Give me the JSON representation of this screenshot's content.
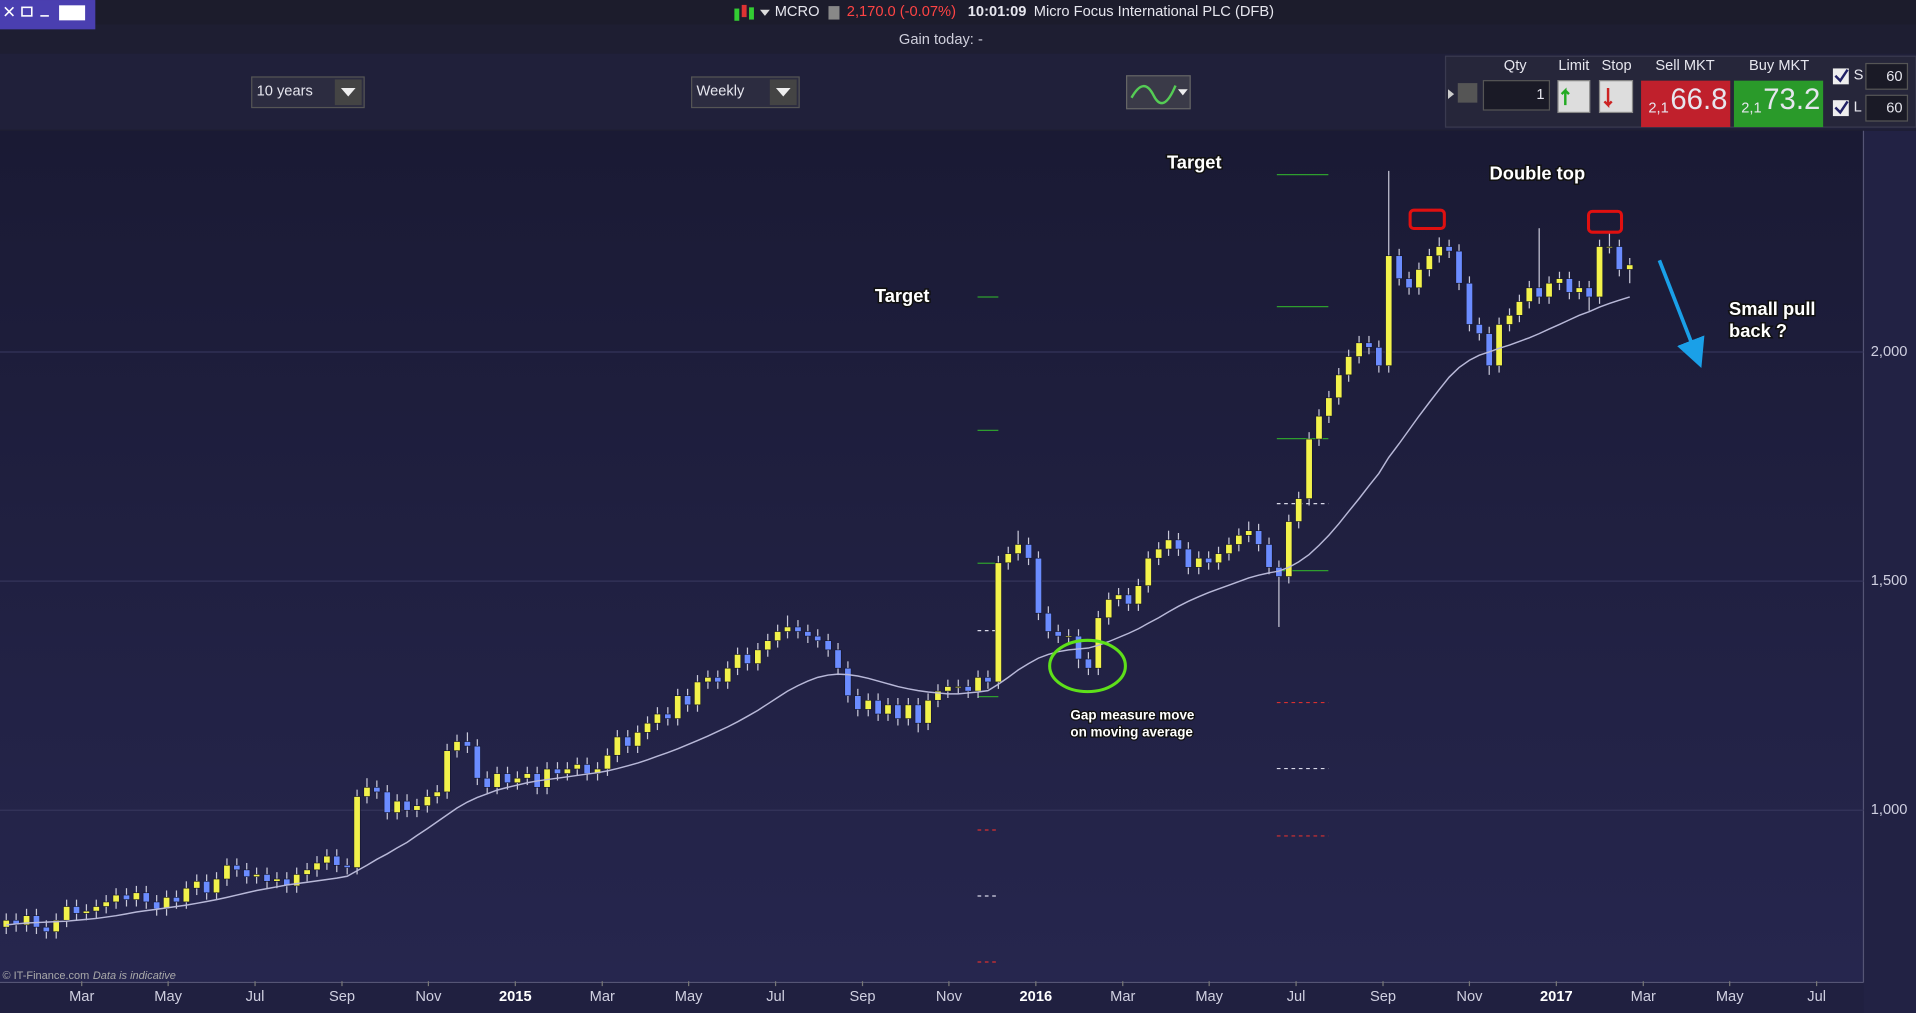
{
  "topbar": {
    "ticker": "MCRO",
    "price_change": "2,170.0 (-0.07%)",
    "time": "10:01:09",
    "instrument": "Micro Focus International PLC (DFB)",
    "gain_today": "Gain today: -"
  },
  "controls": {
    "period": "10 years",
    "interval": "Weekly"
  },
  "trade_panel": {
    "qty_label": "Qty",
    "qty": "1",
    "limit_label": "Limit",
    "stop_label": "Stop",
    "sell_label": "Sell MKT",
    "sell_prefix": "2,1",
    "sell_price": "66.8",
    "buy_label": "Buy MKT",
    "buy_prefix": "2,1",
    "buy_price": "73.2",
    "s_label": "S",
    "s_value": "60",
    "l_label": "L",
    "l_value": "60"
  },
  "footer": {
    "copyright": "© IT-Finance.com",
    "note": "Data is indicative"
  },
  "chart_data": {
    "type": "candlestick",
    "up_color": "#f2f24b",
    "down_color": "#6b8cff",
    "grid": true,
    "x": [
      2014.022,
      2014.041,
      2014.061,
      2014.08,
      2014.099,
      2014.118,
      2014.138,
      2014.157,
      2014.176,
      2014.195,
      2014.214,
      2014.233,
      2014.253,
      2014.272,
      2014.291,
      2014.311,
      2014.33,
      2014.349,
      2014.368,
      2014.388,
      2014.407,
      2014.426,
      2014.446,
      2014.465,
      2014.484,
      2014.503,
      2014.523,
      2014.542,
      2014.561,
      2014.58,
      2014.6,
      2014.619,
      2014.638,
      2014.657,
      2014.677,
      2014.696,
      2014.715,
      2014.734,
      2014.754,
      2014.773,
      2014.792,
      2014.811,
      2014.831,
      2014.85,
      2014.869,
      2014.888,
      2014.908,
      2014.927,
      2014.946,
      2014.965,
      2014.985,
      2015.004,
      2015.023,
      2015.042,
      2015.061,
      2015.081,
      2015.1,
      2015.119,
      2015.138,
      2015.158,
      2015.177,
      2015.196,
      2015.216,
      2015.235,
      2015.254,
      2015.273,
      2015.293,
      2015.312,
      2015.331,
      2015.35,
      2015.37,
      2015.389,
      2015.408,
      2015.427,
      2015.446,
      2015.466,
      2015.485,
      2015.504,
      2015.523,
      2015.543,
      2015.562,
      2015.581,
      2015.601,
      2015.62,
      2015.639,
      2015.658,
      2015.678,
      2015.697,
      2015.716,
      2015.735,
      2015.755,
      2015.774,
      2015.793,
      2015.812,
      2015.831,
      2015.851,
      2015.87,
      2015.889,
      2015.908,
      2015.928,
      2015.947,
      2015.966,
      2015.986,
      2016.005,
      2016.024,
      2016.043,
      2016.063,
      2016.082,
      2016.101,
      2016.12,
      2016.14,
      2016.159,
      2016.178,
      2016.197,
      2016.216,
      2016.236,
      2016.255,
      2016.274,
      2016.293,
      2016.313,
      2016.332,
      2016.351,
      2016.371,
      2016.39,
      2016.409,
      2016.428,
      2016.448,
      2016.467,
      2016.486,
      2016.505,
      2016.525,
      2016.544,
      2016.563,
      2016.582,
      2016.601,
      2016.621,
      2016.64,
      2016.659,
      2016.678,
      2016.698,
      2016.717,
      2016.736,
      2016.756,
      2016.775,
      2016.794,
      2016.813,
      2016.833,
      2016.852,
      2016.871,
      2016.89,
      2016.91,
      2016.929,
      2016.948,
      2016.967,
      2016.986,
      2017.006,
      2017.025,
      2017.044,
      2017.063,
      2017.083,
      2017.102,
      2017.121,
      2017.141
    ],
    "open": [
      745,
      760,
      750,
      770,
      745,
      735,
      760,
      790,
      775,
      780,
      790,
      800,
      815,
      805,
      820,
      800,
      785,
      810,
      800,
      830,
      845,
      820,
      850,
      880,
      870,
      855,
      860,
      845,
      850,
      835,
      860,
      870,
      885,
      900,
      880,
      875,
      1030,
      1050,
      1040,
      995,
      1020,
      1000,
      1010,
      1030,
      1040,
      1130,
      1150,
      1140,
      1070,
      1050,
      1080,
      1060,
      1070,
      1080,
      1050,
      1090,
      1080,
      1090,
      1100,
      1080,
      1090,
      1120,
      1160,
      1140,
      1170,
      1190,
      1210,
      1200,
      1250,
      1230,
      1280,
      1290,
      1280,
      1310,
      1340,
      1320,
      1350,
      1370,
      1390,
      1400,
      1390,
      1380,
      1370,
      1350,
      1310,
      1250,
      1220,
      1240,
      1210,
      1230,
      1200,
      1230,
      1190,
      1240,
      1260,
      1270,
      1270,
      1260,
      1290,
      1280,
      1540,
      1560,
      1580,
      1550,
      1430,
      1390,
      1380,
      1380,
      1330,
      1310,
      1420,
      1460,
      1470,
      1450,
      1490,
      1550,
      1570,
      1590,
      1570,
      1530,
      1550,
      1540,
      1560,
      1580,
      1600,
      1610,
      1580,
      1530,
      1510,
      1630,
      1680,
      1810,
      1860,
      1900,
      1950,
      1990,
      2020,
      2010,
      1970,
      2210,
      2160,
      2140,
      2180,
      2210,
      2230,
      2220,
      2150,
      2060,
      2040,
      1970,
      2060,
      2080,
      2110,
      2140,
      2120,
      2150,
      2160,
      2130,
      2140,
      2120,
      2230,
      2230,
      2180
    ],
    "high": [
      775,
      775,
      785,
      785,
      760,
      775,
      805,
      805,
      795,
      805,
      815,
      830,
      830,
      835,
      835,
      815,
      825,
      825,
      845,
      860,
      860,
      865,
      895,
      895,
      885,
      875,
      875,
      865,
      865,
      875,
      885,
      900,
      915,
      915,
      895,
      1045,
      1070,
      1065,
      1055,
      1035,
      1035,
      1025,
      1045,
      1055,
      1145,
      1165,
      1170,
      1155,
      1085,
      1095,
      1095,
      1085,
      1095,
      1095,
      1105,
      1105,
      1105,
      1115,
      1115,
      1105,
      1135,
      1175,
      1175,
      1185,
      1205,
      1225,
      1225,
      1265,
      1265,
      1295,
      1305,
      1305,
      1325,
      1355,
      1355,
      1365,
      1385,
      1405,
      1425,
      1415,
      1405,
      1395,
      1385,
      1365,
      1325,
      1265,
      1255,
      1255,
      1245,
      1245,
      1245,
      1245,
      1255,
      1275,
      1285,
      1285,
      1285,
      1305,
      1305,
      1555,
      1575,
      1610,
      1595,
      1565,
      1445,
      1405,
      1395,
      1395,
      1345,
      1435,
      1475,
      1485,
      1485,
      1505,
      1565,
      1585,
      1610,
      1605,
      1585,
      1565,
      1565,
      1575,
      1595,
      1615,
      1630,
      1625,
      1595,
      1545,
      1645,
      1695,
      1825,
      1875,
      1915,
      1965,
      2005,
      2035,
      2035,
      2025,
      2395,
      2225,
      2175,
      2195,
      2225,
      2250,
      2245,
      2235,
      2165,
      2075,
      2055,
      2075,
      2095,
      2125,
      2155,
      2270,
      2165,
      2175,
      2175,
      2155,
      2155,
      2245,
      2260,
      2245,
      2205
    ],
    "low": [
      730,
      735,
      735,
      730,
      720,
      720,
      745,
      760,
      760,
      765,
      775,
      785,
      790,
      790,
      785,
      770,
      770,
      785,
      785,
      815,
      805,
      805,
      835,
      855,
      840,
      840,
      830,
      830,
      820,
      820,
      845,
      855,
      870,
      865,
      860,
      860,
      1015,
      1025,
      980,
      980,
      985,
      985,
      995,
      1015,
      1025,
      1115,
      1125,
      1055,
      1035,
      1035,
      1045,
      1045,
      1055,
      1035,
      1035,
      1065,
      1065,
      1075,
      1065,
      1065,
      1075,
      1105,
      1125,
      1125,
      1155,
      1175,
      1185,
      1185,
      1215,
      1215,
      1265,
      1265,
      1265,
      1295,
      1305,
      1305,
      1335,
      1355,
      1375,
      1375,
      1365,
      1355,
      1335,
      1295,
      1235,
      1205,
      1205,
      1195,
      1195,
      1185,
      1185,
      1170,
      1175,
      1225,
      1245,
      1255,
      1245,
      1245,
      1265,
      1265,
      1525,
      1545,
      1535,
      1415,
      1375,
      1365,
      1365,
      1310,
      1295,
      1295,
      1405,
      1445,
      1435,
      1435,
      1475,
      1535,
      1555,
      1555,
      1515,
      1515,
      1525,
      1525,
      1545,
      1565,
      1585,
      1565,
      1515,
      1400,
      1495,
      1615,
      1665,
      1795,
      1845,
      1885,
      1935,
      1975,
      1995,
      1955,
      1955,
      2145,
      2125,
      2125,
      2165,
      2195,
      2205,
      2135,
      2045,
      2025,
      1950,
      1955,
      2045,
      2065,
      2095,
      2105,
      2105,
      2135,
      2115,
      2115,
      2090,
      2105,
      2215,
      2165,
      2150
    ],
    "close": [
      760,
      750,
      770,
      745,
      735,
      760,
      790,
      775,
      780,
      790,
      800,
      815,
      805,
      820,
      800,
      785,
      810,
      800,
      830,
      845,
      820,
      850,
      880,
      870,
      855,
      860,
      845,
      850,
      835,
      860,
      870,
      885,
      900,
      880,
      875,
      1030,
      1050,
      1040,
      995,
      1020,
      1000,
      1010,
      1030,
      1040,
      1130,
      1150,
      1140,
      1070,
      1050,
      1080,
      1060,
      1070,
      1080,
      1050,
      1090,
      1080,
      1090,
      1100,
      1080,
      1090,
      1120,
      1160,
      1140,
      1170,
      1190,
      1210,
      1200,
      1250,
      1230,
      1280,
      1290,
      1280,
      1310,
      1340,
      1320,
      1350,
      1370,
      1390,
      1400,
      1390,
      1380,
      1370,
      1350,
      1310,
      1250,
      1220,
      1240,
      1210,
      1230,
      1200,
      1230,
      1190,
      1240,
      1260,
      1270,
      1270,
      1260,
      1290,
      1280,
      1540,
      1560,
      1580,
      1550,
      1430,
      1390,
      1380,
      1380,
      1330,
      1310,
      1420,
      1460,
      1470,
      1450,
      1490,
      1550,
      1570,
      1590,
      1570,
      1530,
      1550,
      1540,
      1560,
      1580,
      1600,
      1610,
      1580,
      1530,
      1510,
      1630,
      1680,
      1810,
      1860,
      1900,
      1950,
      1990,
      2020,
      2010,
      1970,
      2210,
      2160,
      2140,
      2180,
      2210,
      2230,
      2220,
      2150,
      2060,
      2040,
      1970,
      2060,
      2080,
      2110,
      2140,
      2120,
      2150,
      2160,
      2130,
      2140,
      2120,
      2230,
      2230,
      2180,
      2190
    ],
    "series": [
      {
        "color": "#b8b8d8",
        "values": [
          750,
          752,
          754,
          755,
          756,
          757,
          758,
          760,
          762,
          764,
          767,
          770,
          774,
          778,
          781,
          784,
          787,
          790,
          793,
          797,
          801,
          805,
          810,
          815,
          820,
          825,
          829,
          833,
          837,
          840,
          843,
          846,
          849,
          852,
          856,
          868,
          880,
          893,
          905,
          918,
          930,
          945,
          960,
          975,
          990,
          1005,
          1018,
          1028,
          1036,
          1044,
          1050,
          1055,
          1060,
          1064,
          1067,
          1070,
          1073,
          1076,
          1079,
          1082,
          1086,
          1091,
          1097,
          1103,
          1110,
          1118,
          1126,
          1134,
          1143,
          1152,
          1162,
          1172,
          1182,
          1193,
          1205,
          1218,
          1232,
          1246,
          1260,
          1272,
          1282,
          1290,
          1295,
          1297,
          1296,
          1293,
          1288,
          1282,
          1276,
          1270,
          1265,
          1261,
          1258,
          1256,
          1254,
          1254,
          1256,
          1258,
          1261,
          1275,
          1290,
          1306,
          1320,
          1332,
          1340,
          1346,
          1350,
          1352,
          1354,
          1360,
          1368,
          1377,
          1386,
          1396,
          1408,
          1420,
          1433,
          1445,
          1456,
          1466,
          1475,
          1483,
          1491,
          1499,
          1507,
          1513,
          1518,
          1522,
          1530,
          1542,
          1558,
          1578,
          1600,
          1625,
          1652,
          1680,
          1708,
          1735,
          1770,
          1800,
          1830,
          1860,
          1890,
          1918,
          1945,
          1966,
          1982,
          1993,
          2000,
          2008,
          2015,
          2023,
          2031,
          2040,
          2050,
          2060,
          2070,
          2080,
          2088,
          2098,
          2106,
          2113,
          2120
        ]
      }
    ],
    "levels": [
      {
        "x": [
          2015.888,
          2015.928
        ],
        "value": 2120,
        "color": "#2e9e2e",
        "dashed": false
      },
      {
        "x": [
          2015.888,
          2015.928
        ],
        "value": 1829,
        "color": "#2e9e2e",
        "dashed": false
      },
      {
        "x": [
          2015.888,
          2015.928
        ],
        "value": 1539,
        "color": "#2e9e2e",
        "dashed": false
      },
      {
        "x": [
          2015.888,
          2015.928
        ],
        "value": 1392,
        "color": "#d8d8e8",
        "dashed": true
      },
      {
        "x": [
          2015.888,
          2015.928
        ],
        "value": 1248,
        "color": "#2e9e2e",
        "dashed": false
      },
      {
        "x": [
          2015.888,
          2015.928
        ],
        "value": 957,
        "color": "#d83030",
        "dashed": true
      },
      {
        "x": [
          2015.888,
          2015.928
        ],
        "value": 813,
        "color": "#d8d8e8",
        "dashed": true
      },
      {
        "x": [
          2015.888,
          2015.928
        ],
        "value": 669,
        "color": "#d83030",
        "dashed": true
      },
      {
        "x": [
          2016.463,
          2016.562
        ],
        "value": 2387,
        "color": "#2e9e2e",
        "dashed": false
      },
      {
        "x": [
          2016.463,
          2016.562
        ],
        "value": 2099,
        "color": "#2e9e2e",
        "dashed": false
      },
      {
        "x": [
          2016.463,
          2016.562
        ],
        "value": 1811,
        "color": "#2e9e2e",
        "dashed": false
      },
      {
        "x": [
          2016.463,
          2016.562
        ],
        "value": 1669,
        "color": "#d8d8e8",
        "dashed": true
      },
      {
        "x": [
          2016.463,
          2016.562
        ],
        "value": 1523,
        "color": "#2e9e2e",
        "dashed": false
      },
      {
        "x": [
          2016.463,
          2016.562
        ],
        "value": 1235,
        "color": "#d83030",
        "dashed": true
      },
      {
        "x": [
          2016.463,
          2016.562
        ],
        "value": 1091,
        "color": "#d8d8e8",
        "dashed": true
      },
      {
        "x": [
          2016.463,
          2016.562
        ],
        "value": 944,
        "color": "#d83030",
        "dashed": true
      }
    ],
    "annotations": [
      "Target",
      "Target",
      "Double top",
      "Small pull",
      "back ?",
      "Gap measure move",
      "on moving average"
    ],
    "xlim": [
      2014.01,
      2017.59
    ],
    "xticks": [
      {
        "value": 2014.167,
        "label": "Mar"
      },
      {
        "value": 2014.333,
        "label": "May"
      },
      {
        "value": 2014.5,
        "label": "Jul"
      },
      {
        "value": 2014.667,
        "label": "Sep"
      },
      {
        "value": 2014.833,
        "label": "Nov"
      },
      2015,
      {
        "value": 2015.167,
        "label": "Mar"
      },
      {
        "value": 2015.333,
        "label": "May"
      },
      {
        "value": 2015.5,
        "label": "Jul"
      },
      {
        "value": 2015.667,
        "label": "Sep"
      },
      {
        "value": 2015.833,
        "label": "Nov"
      },
      2016,
      {
        "value": 2016.167,
        "label": "Mar"
      },
      {
        "value": 2016.333,
        "label": "May"
      },
      {
        "value": 2016.5,
        "label": "Jul"
      },
      {
        "value": 2016.667,
        "label": "Sep"
      },
      {
        "value": 2016.833,
        "label": "Nov"
      },
      2017,
      {
        "value": 2017.167,
        "label": "Mar"
      },
      {
        "value": 2017.333,
        "label": "May"
      },
      {
        "value": 2017.5,
        "label": "Jul"
      }
    ],
    "ylim": [
      627,
      2480
    ],
    "yticks": [
      {
        "value": 1000,
        "label": "1,000"
      },
      {
        "value": 1500,
        "label": "1,500"
      },
      {
        "value": 2000,
        "label": "2,000"
      }
    ]
  }
}
